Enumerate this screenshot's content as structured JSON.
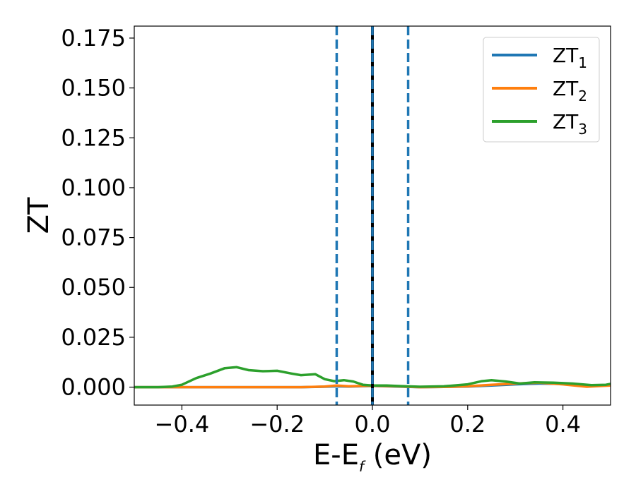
{
  "chart_data": {
    "type": "line",
    "xlabel": "E-E",
    "xlabel_sub": "f",
    "xlabel_unit": "(eV)",
    "ylabel": "ZT",
    "xlim": [
      -0.5,
      0.5
    ],
    "ylim": [
      -0.009,
      0.181
    ],
    "xticks": [
      -0.4,
      -0.2,
      0.0,
      0.2,
      0.4
    ],
    "xtick_labels": [
      "−0.4",
      "−0.2",
      "0.0",
      "0.2",
      "0.4"
    ],
    "yticks": [
      0.0,
      0.025,
      0.05,
      0.075,
      0.1,
      0.125,
      0.15,
      0.175
    ],
    "ytick_labels": [
      "0.000",
      "0.025",
      "0.050",
      "0.075",
      "0.100",
      "0.125",
      "0.150",
      "0.175"
    ],
    "grid": false,
    "legend_placement": "top-right",
    "series": [
      {
        "name": "ZT",
        "name_sub": "1",
        "color": "#1f77b4",
        "x": [
          -0.5,
          -0.45,
          -0.4,
          -0.35,
          -0.3,
          -0.25,
          -0.2,
          -0.15,
          -0.1,
          -0.075,
          -0.05,
          0.0,
          0.05,
          0.1,
          0.15,
          0.2,
          0.25,
          0.3,
          0.35,
          0.4,
          0.45,
          0.5
        ],
        "y": [
          0.0,
          0.0,
          0.0,
          0.0,
          0.0,
          0.0,
          0.0,
          0.0,
          0.0002,
          0.0004,
          0.0003,
          0.0006,
          0.0003,
          0.0,
          0.0001,
          0.0003,
          0.0008,
          0.0014,
          0.0018,
          0.0016,
          0.0006,
          0.001
        ]
      },
      {
        "name": "ZT",
        "name_sub": "2",
        "color": "#ff7f0e",
        "x": [
          -0.5,
          -0.45,
          -0.4,
          -0.35,
          -0.3,
          -0.25,
          -0.2,
          -0.15,
          -0.1,
          -0.075,
          -0.05,
          0.0,
          0.05,
          0.1,
          0.15,
          0.2,
          0.25,
          0.3,
          0.35,
          0.4,
          0.45,
          0.5
        ],
        "y": [
          0.0,
          0.0,
          0.0,
          0.0,
          0.0,
          0.0,
          0.0,
          0.0,
          0.0003,
          0.0008,
          0.0004,
          0.0007,
          0.0004,
          0.0,
          0.0001,
          0.0004,
          0.0012,
          0.0018,
          0.0022,
          0.0014,
          0.0002,
          0.0008
        ]
      },
      {
        "name": "ZT",
        "name_sub": "3",
        "color": "#2ca02c",
        "x": [
          -0.5,
          -0.45,
          -0.42,
          -0.4,
          -0.37,
          -0.34,
          -0.31,
          -0.285,
          -0.26,
          -0.23,
          -0.2,
          -0.17,
          -0.15,
          -0.12,
          -0.1,
          -0.08,
          -0.06,
          -0.04,
          -0.02,
          0.0,
          0.03,
          0.06,
          0.1,
          0.15,
          0.2,
          0.23,
          0.25,
          0.28,
          0.31,
          0.34,
          0.38,
          0.42,
          0.46,
          0.49,
          0.5
        ],
        "y": [
          0.0,
          0.0,
          0.0003,
          0.0012,
          0.0045,
          0.0068,
          0.0095,
          0.01,
          0.0085,
          0.008,
          0.0082,
          0.0068,
          0.006,
          0.0065,
          0.004,
          0.003,
          0.0035,
          0.0028,
          0.0012,
          0.0008,
          0.0008,
          0.0005,
          0.0002,
          0.0004,
          0.0014,
          0.003,
          0.0035,
          0.0028,
          0.0018,
          0.0024,
          0.0022,
          0.0018,
          0.001,
          0.0012,
          0.0016
        ]
      }
    ],
    "vlines": [
      {
        "x": 0.0,
        "color": "#000000",
        "style": "solid"
      },
      {
        "x": 0.0,
        "color": "#1f77b4",
        "style": "dashed"
      },
      {
        "x": -0.075,
        "color": "#1f77b4",
        "style": "dashed"
      },
      {
        "x": 0.075,
        "color": "#1f77b4",
        "style": "dashed"
      }
    ]
  }
}
